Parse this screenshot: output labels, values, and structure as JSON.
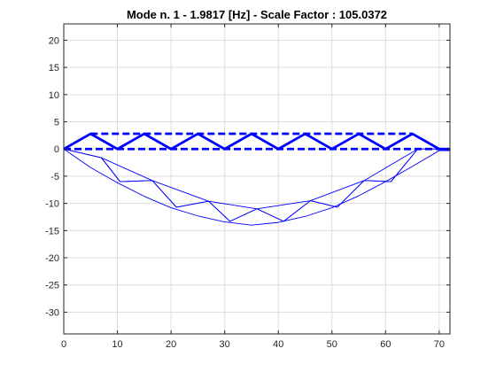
{
  "colors": {
    "line": "#0000ff",
    "grid": "#dcdcdc",
    "axis": "#262626",
    "background": "#ffffff"
  },
  "chart_data": {
    "type": "line",
    "title": "Mode n. 1 - 1.9817 [Hz] - Scale Factor : 105.0372",
    "xlabel": "",
    "ylabel": "",
    "xlim": [
      0,
      72
    ],
    "ylim": [
      -34,
      23
    ],
    "xticks": [
      0,
      10,
      20,
      30,
      40,
      50,
      60,
      70
    ],
    "yticks": [
      20,
      15,
      10,
      5,
      0,
      -5,
      -10,
      -15,
      -20,
      -25,
      -30
    ],
    "grid": true,
    "undeformed": {
      "style": "thick dashed",
      "bottom_chord": [
        [
          0,
          0
        ],
        [
          10,
          0
        ],
        [
          20,
          0
        ],
        [
          30,
          0
        ],
        [
          40,
          0
        ],
        [
          50,
          0
        ],
        [
          60,
          0
        ],
        [
          70,
          0
        ],
        [
          72,
          0
        ]
      ],
      "top_chord": [
        [
          5,
          2.8
        ],
        [
          15,
          2.8
        ],
        [
          25,
          2.8
        ],
        [
          35,
          2.8
        ],
        [
          45,
          2.8
        ],
        [
          55,
          2.8
        ],
        [
          65,
          2.8
        ]
      ],
      "web": [
        [
          0,
          0
        ],
        [
          5,
          2.8
        ],
        [
          10,
          0
        ],
        [
          15,
          2.8
        ],
        [
          20,
          0
        ],
        [
          25,
          2.8
        ],
        [
          30,
          0
        ],
        [
          35,
          2.8
        ],
        [
          40,
          0
        ],
        [
          45,
          2.8
        ],
        [
          50,
          0
        ],
        [
          55,
          2.8
        ],
        [
          60,
          0
        ],
        [
          65,
          2.8
        ],
        [
          70,
          0
        ],
        [
          72,
          0
        ]
      ]
    },
    "deformed": {
      "style": "thin solid",
      "bottom_chord": [
        [
          0,
          0
        ],
        [
          5,
          -3.4
        ],
        [
          10,
          -6.2
        ],
        [
          15,
          -8.7
        ],
        [
          20,
          -10.8
        ],
        [
          25,
          -12.3
        ],
        [
          30,
          -13.4
        ],
        [
          35,
          -14
        ],
        [
          40,
          -13.5
        ],
        [
          45,
          -12.4
        ],
        [
          50,
          -10.8
        ],
        [
          55,
          -8.6
        ],
        [
          60,
          -6
        ],
        [
          65,
          -3.2
        ],
        [
          70,
          -0.3
        ],
        [
          72,
          -0.3
        ]
      ],
      "top_chord": [
        [
          0,
          0
        ],
        [
          7,
          -1.6
        ],
        [
          10.5,
          -6
        ],
        [
          16.5,
          -5.8
        ],
        [
          21,
          -10.7
        ],
        [
          27,
          -9.6
        ],
        [
          31,
          -13.3
        ],
        [
          36,
          -11
        ],
        [
          41,
          -13.3
        ],
        [
          46,
          -9.5
        ],
        [
          51,
          -10.7
        ],
        [
          56,
          -5.8
        ],
        [
          61,
          -6
        ],
        [
          66,
          0
        ],
        [
          70,
          0
        ],
        [
          72,
          -0.3
        ]
      ],
      "web": [
        [
          0,
          0
        ],
        [
          7,
          -1.6
        ],
        [
          10.5,
          -6
        ],
        [
          16.5,
          -5.8
        ],
        [
          21,
          -10.7
        ],
        [
          27,
          -9.6
        ],
        [
          31,
          -13.3
        ],
        [
          36,
          -11
        ],
        [
          41,
          -13.3
        ],
        [
          46,
          -9.5
        ],
        [
          51,
          -10.7
        ],
        [
          56,
          -5.8
        ],
        [
          61,
          -6
        ],
        [
          66,
          0
        ],
        [
          70,
          0
        ],
        [
          72,
          -0.3
        ]
      ],
      "upper_envelope": [
        [
          7,
          -1.6
        ],
        [
          16.5,
          -5.8
        ],
        [
          27,
          -9.6
        ],
        [
          36,
          -11
        ],
        [
          46,
          -9.5
        ],
        [
          56,
          -5.8
        ],
        [
          66,
          0
        ]
      ]
    }
  }
}
